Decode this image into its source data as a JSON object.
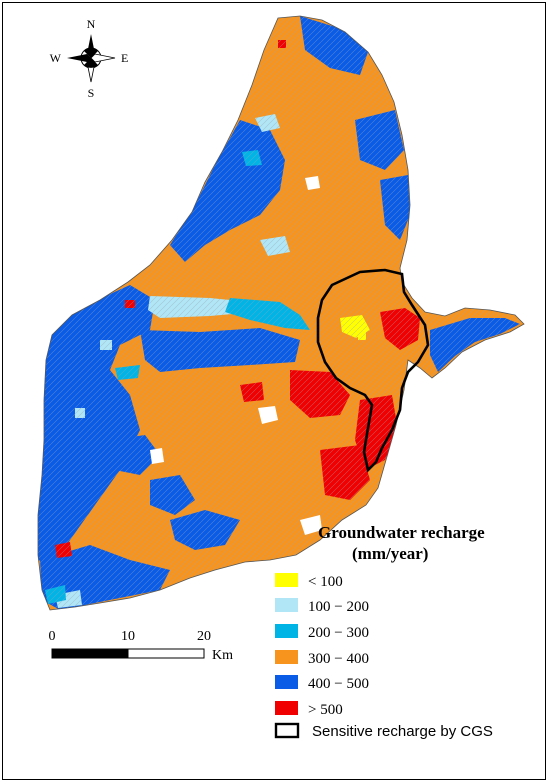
{
  "map": {
    "colors": {
      "lt100": "#ffff00",
      "r100_200": "#b0e6f5",
      "r200_300": "#00b4e6",
      "r300_400": "#f7941d",
      "r400_500": "#0a5ce6",
      "gt500": "#f00000",
      "boundary": "#000000"
    }
  },
  "compass": {
    "north": "N",
    "south": "S",
    "east": "E",
    "west": "W"
  },
  "scale_bar": {
    "ticks": [
      "0",
      "10",
      "20"
    ],
    "unit": "Km"
  },
  "legend": {
    "title_line1": "Groundwater recharge",
    "title_line2": "(mm/year)",
    "items": [
      {
        "label": "< 100",
        "color": "#ffff00"
      },
      {
        "label": "100 − 200",
        "color": "#b0e6f5"
      },
      {
        "label": "200 − 300",
        "color": "#00b4e6"
      },
      {
        "label": "300 − 400",
        "color": "#f7941d"
      },
      {
        "label": "400 − 500",
        "color": "#0a5ce6"
      },
      {
        "label": "> 500",
        "color": "#f00000"
      }
    ],
    "outline_item": {
      "label": "Sensitive recharge by CGS"
    }
  }
}
